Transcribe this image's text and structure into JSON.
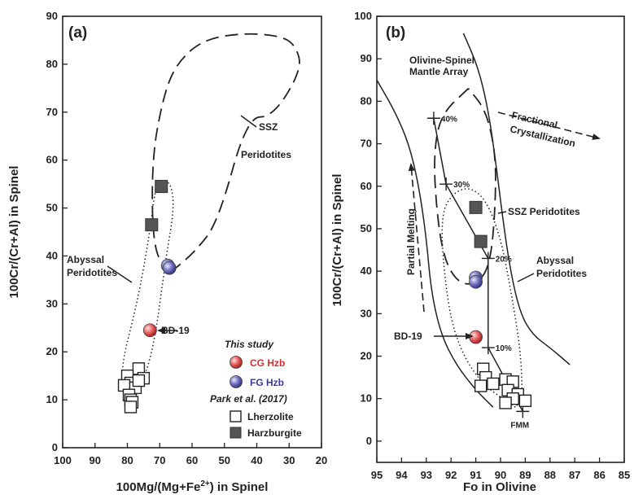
{
  "colors": {
    "cg": "#e04848",
    "fg": "#4e4ea8",
    "harz": "#555555",
    "text": "#222222"
  },
  "chart_data": [
    {
      "panel_label": "(a)",
      "type": "scatter",
      "xlabel_main": "100Mg/(Mg+Fe",
      "xlabel_sup": "2+",
      "xlabel_tail": ") in Spinel",
      "ylabel": "100Cr/(Cr+Al) in Spinel",
      "xlim": [
        100,
        20
      ],
      "ylim": [
        0,
        90
      ],
      "xticks": [
        100,
        90,
        80,
        70,
        60,
        50,
        40,
        30,
        20
      ],
      "yticks": [
        0,
        10,
        20,
        30,
        40,
        50,
        60,
        70,
        80,
        90
      ],
      "field_labels": [
        {
          "lines": [
            "SSZ",
            "Peridotites"
          ]
        },
        {
          "lines": [
            "Abyssal",
            "Peridotites"
          ]
        }
      ],
      "sample_label": "BD-19",
      "legend": {
        "this_study": "This study",
        "cg": "CG Hzb",
        "fg": "FG Hzb",
        "park": "Park et al. (2017)",
        "lherz": "Lherzolite",
        "harz": "Harzburgite"
      },
      "series": [
        {
          "name": "CG Hzb",
          "marker": "red-sphere",
          "points": [
            [
              73,
              24.5
            ]
          ]
        },
        {
          "name": "FG Hzb",
          "marker": "blue-sphere",
          "points": [
            [
              67.5,
              38
            ],
            [
              67,
              37.5
            ]
          ]
        },
        {
          "name": "Lherzolite",
          "marker": "open-square",
          "points": [
            [
              76.5,
              16.5
            ],
            [
              80,
              15
            ],
            [
              75,
              14.5
            ],
            [
              79,
              13.5
            ],
            [
              81,
              13
            ],
            [
              77.5,
              12.5
            ],
            [
              79.5,
              11
            ],
            [
              79,
              10
            ],
            [
              78.5,
              9.5
            ],
            [
              79,
              8.5
            ],
            [
              76.5,
              14
            ]
          ]
        },
        {
          "name": "Harzburgite",
          "marker": "filled-square",
          "points": [
            [
              69.5,
              54.5
            ],
            [
              72.5,
              46.5
            ]
          ]
        }
      ]
    },
    {
      "panel_label": "(b)",
      "type": "scatter",
      "xlabel": "Fo in Olivine",
      "ylabel": "100Cr/(Cr+Al) in Spinel",
      "xlim": [
        95,
        85
      ],
      "ylim": [
        -5,
        100
      ],
      "xticks": [
        95,
        94,
        93,
        92,
        91,
        90,
        89,
        88,
        87,
        86,
        85
      ],
      "yticks": [
        0,
        10,
        20,
        30,
        40,
        50,
        60,
        70,
        80,
        90,
        100
      ],
      "field_labels": [
        {
          "lines": [
            "Olivine-Spinel",
            "Mantle Array"
          ]
        },
        {
          "lines": [
            "SSZ Peridotites"
          ]
        },
        {
          "lines": [
            "Abyssal",
            "Peridotites"
          ]
        }
      ],
      "arrow_labels": {
        "fc": [
          "Fractional",
          "Crystallization"
        ],
        "pm": "Partial Melting"
      },
      "melting_marks": [
        {
          "x": 92.7,
          "y": 76,
          "label": "40%"
        },
        {
          "x": 92.2,
          "y": 60.5,
          "label": "30%"
        },
        {
          "x": 90.5,
          "y": 43,
          "label": "20%"
        },
        {
          "x": 90.5,
          "y": 22,
          "label": "10%"
        },
        {
          "x": 89.1,
          "y": 7,
          "label": "FMM"
        }
      ],
      "sample_label": "BD-19",
      "series": [
        {
          "name": "CG Hzb",
          "marker": "red-sphere",
          "points": [
            [
              91,
              24.5
            ]
          ]
        },
        {
          "name": "FG Hzb",
          "marker": "blue-sphere",
          "points": [
            [
              91,
              38.5
            ],
            [
              91,
              37.5
            ]
          ]
        },
        {
          "name": "Lherzolite",
          "marker": "open-square",
          "points": [
            [
              90.7,
              17
            ],
            [
              90.6,
              15
            ],
            [
              89.8,
              14.5
            ],
            [
              89.5,
              14
            ],
            [
              90.3,
              13.5
            ],
            [
              90.8,
              13
            ],
            [
              89.7,
              12
            ],
            [
              89.3,
              11
            ],
            [
              89.5,
              10
            ],
            [
              89,
              9.5
            ],
            [
              89.8,
              9
            ]
          ]
        },
        {
          "name": "Harzburgite",
          "marker": "filled-square",
          "points": [
            [
              91,
              55
            ],
            [
              90.8,
              47
            ]
          ]
        }
      ]
    }
  ]
}
